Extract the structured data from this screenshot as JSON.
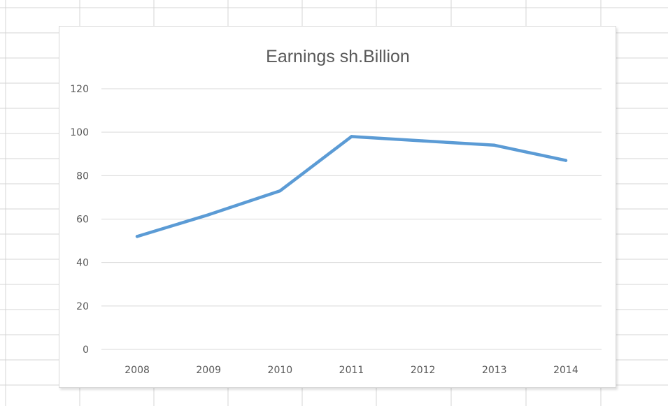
{
  "chart_data": {
    "type": "line",
    "title": "Earnings sh.Billion",
    "xlabel": "",
    "ylabel": "",
    "categories": [
      "2008",
      "2009",
      "2010",
      "2011",
      "2012",
      "2013",
      "2014"
    ],
    "series": [
      {
        "values": [
          52,
          62,
          73,
          98,
          96,
          94,
          87
        ]
      }
    ],
    "ylim": [
      0,
      120
    ],
    "yticks": [
      "0",
      "20",
      "40",
      "60",
      "80",
      "100",
      "120"
    ],
    "grid": true,
    "legend": "none",
    "colors": {
      "line": "#5b9bd5",
      "grid": "#d9d9d9",
      "text": "#595959"
    }
  }
}
